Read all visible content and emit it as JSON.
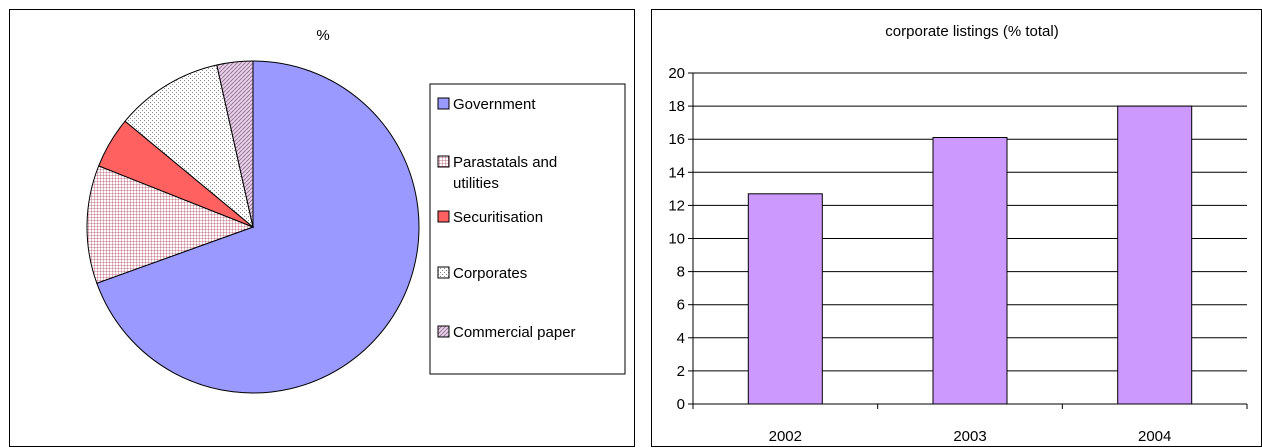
{
  "colors": {
    "government": "#9999ff",
    "parastatals": "#e8c0c8",
    "securitisation": "#ff6060",
    "corporates": "#ffffff",
    "commercial_paper": "#e0c4e0",
    "bar": "#cc99ff"
  },
  "chart_data": [
    {
      "type": "pie",
      "title": "%",
      "legend_position": "right",
      "categories": [
        "Government",
        "Parastatals and utilities",
        "Securitisation",
        "Corporates",
        "Commercial paper"
      ],
      "values": [
        69.5,
        11.5,
        5,
        10.5,
        3.5
      ]
    },
    {
      "type": "bar",
      "title": "corporate listings (% total)",
      "categories": [
        "2002",
        "2003",
        "2004"
      ],
      "values": [
        12.7,
        16.1,
        18
      ],
      "ylim": [
        0,
        20
      ],
      "yticks": [
        "0",
        "2",
        "4",
        "6",
        "8",
        "10",
        "12",
        "14",
        "16",
        "18",
        "20"
      ],
      "grid": true,
      "xlabel": "",
      "ylabel": ""
    }
  ]
}
